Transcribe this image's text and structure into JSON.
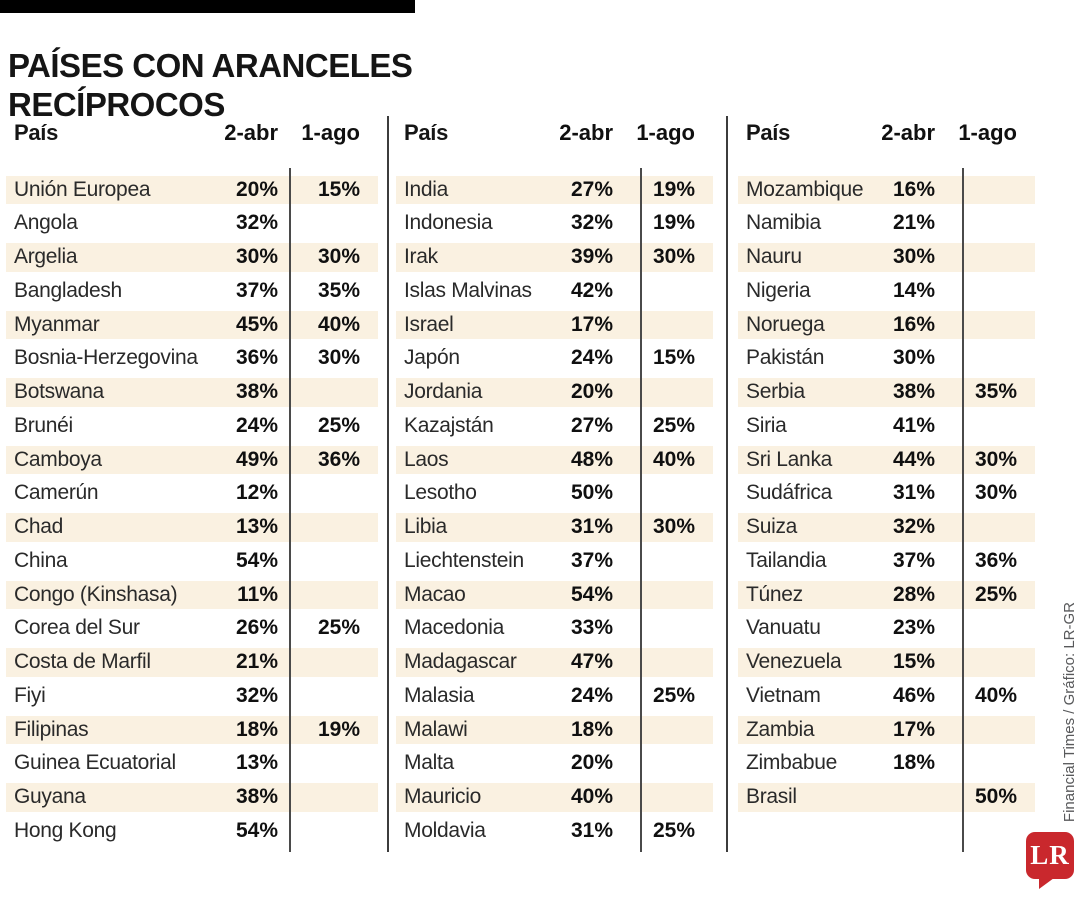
{
  "header": {
    "title_lines": [
      "PAÍSES CON ARANCELES",
      "RECÍPROCOS"
    ]
  },
  "credit": "Financial Times / Gráfico: LR-GR",
  "logo_text": "LR",
  "colors": {
    "row_shade": "#faf1e1",
    "logo_red": "#c9282d",
    "topbar_black": "#000000",
    "credit_gray": "#58595b"
  },
  "chart_data": {
    "type": "table",
    "title": "PAÍSES CON ARANCELES RECÍPROCOS",
    "columns": [
      "País",
      "2-abr",
      "1-ago"
    ],
    "panels": [
      [
        [
          "Unión Europea",
          "20%",
          "15%"
        ],
        [
          "Angola",
          "32%",
          ""
        ],
        [
          "Argelia",
          "30%",
          "30%"
        ],
        [
          "Bangladesh",
          "37%",
          "35%"
        ],
        [
          "Myanmar",
          "45%",
          "40%"
        ],
        [
          "Bosnia-Herzegovina",
          "36%",
          "30%"
        ],
        [
          "Botswana",
          "38%",
          ""
        ],
        [
          "Brunéi",
          "24%",
          "25%"
        ],
        [
          "Camboya",
          "49%",
          "36%"
        ],
        [
          "Camerún",
          "12%",
          ""
        ],
        [
          "Chad",
          "13%",
          ""
        ],
        [
          "China",
          "54%",
          ""
        ],
        [
          "Congo (Kinshasa)",
          "11%",
          ""
        ],
        [
          "Corea del Sur",
          "26%",
          "25%"
        ],
        [
          "Costa de Marfil",
          "21%",
          ""
        ],
        [
          "Fiyi",
          "32%",
          ""
        ],
        [
          "Filipinas",
          "18%",
          "19%"
        ],
        [
          "Guinea Ecuatorial",
          "13%",
          ""
        ],
        [
          "Guyana",
          "38%",
          ""
        ],
        [
          "Hong Kong",
          "54%",
          ""
        ]
      ],
      [
        [
          "India",
          "27%",
          "19%"
        ],
        [
          "Indonesia",
          "32%",
          "19%"
        ],
        [
          "Irak",
          "39%",
          "30%"
        ],
        [
          "Islas Malvinas",
          "42%",
          ""
        ],
        [
          "Israel",
          "17%",
          ""
        ],
        [
          "Japón",
          "24%",
          "15%"
        ],
        [
          "Jordania",
          "20%",
          ""
        ],
        [
          "Kazajstán",
          "27%",
          "25%"
        ],
        [
          "Laos",
          "48%",
          "40%"
        ],
        [
          "Lesotho",
          "50%",
          ""
        ],
        [
          "Libia",
          "31%",
          "30%"
        ],
        [
          "Liechtenstein",
          "37%",
          ""
        ],
        [
          "Macao",
          "54%",
          ""
        ],
        [
          "Macedonia",
          "33%",
          ""
        ],
        [
          "Madagascar",
          "47%",
          ""
        ],
        [
          "Malasia",
          "24%",
          "25%"
        ],
        [
          "Malawi",
          "18%",
          ""
        ],
        [
          "Malta",
          "20%",
          ""
        ],
        [
          "Mauricio",
          "40%",
          ""
        ],
        [
          "Moldavia",
          "31%",
          "25%"
        ]
      ],
      [
        [
          "Mozambique",
          "16%",
          ""
        ],
        [
          "Namibia",
          "21%",
          ""
        ],
        [
          "Nauru",
          "30%",
          ""
        ],
        [
          "Nigeria",
          "14%",
          ""
        ],
        [
          "Noruega",
          "16%",
          ""
        ],
        [
          "Pakistán",
          "30%",
          ""
        ],
        [
          "Serbia",
          "38%",
          "35%"
        ],
        [
          "Siria",
          "41%",
          ""
        ],
        [
          "Sri Lanka",
          "44%",
          "30%"
        ],
        [
          "Sudáfrica",
          "31%",
          "30%"
        ],
        [
          "Suiza",
          "32%",
          ""
        ],
        [
          "Tailandia",
          "37%",
          "36%"
        ],
        [
          "Túnez",
          "28%",
          "25%"
        ],
        [
          "Vanuatu",
          "23%",
          ""
        ],
        [
          "Venezuela",
          "15%",
          ""
        ],
        [
          "Vietnam",
          "46%",
          "40%"
        ],
        [
          "Zambia",
          "17%",
          ""
        ],
        [
          "Zimbabue",
          "18%",
          ""
        ],
        [
          "Brasil",
          "",
          "50%"
        ]
      ]
    ]
  }
}
